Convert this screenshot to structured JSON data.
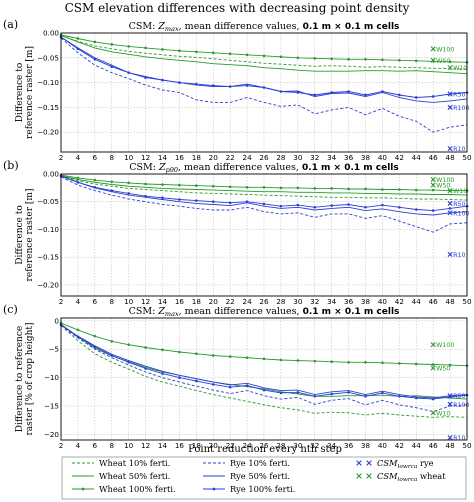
{
  "figure": {
    "title": "CSM elevation differences with decreasing point density",
    "xlabel": "Point reduction every nth step"
  },
  "colors": {
    "wheat": "#2a9a2a",
    "rye": "#2a3fd6"
  },
  "chart_data": [
    {
      "type": "line",
      "panel_label": "(a)",
      "subtitle_parts": [
        "CSM: ",
        "Z",
        "max",
        ", mean difference values, ",
        "0.1 m × 0.1 m cells"
      ],
      "ylabel": [
        "Difference to",
        "reference raster [m]"
      ],
      "xlim": [
        2,
        50
      ],
      "ylim": [
        -0.24,
        0.0
      ],
      "xticks": [
        2,
        4,
        6,
        8,
        10,
        12,
        14,
        16,
        18,
        20,
        22,
        24,
        26,
        28,
        30,
        32,
        34,
        36,
        38,
        40,
        42,
        44,
        46,
        48,
        50
      ],
      "yticks": [
        0.0,
        -0.05,
        -0.1,
        -0.15,
        -0.2
      ],
      "ytick_labels": [
        "0.00",
        "−0.05",
        "−0.10",
        "−0.15",
        "−0.20"
      ],
      "grid": true,
      "x": [
        2,
        4,
        6,
        8,
        10,
        12,
        14,
        16,
        18,
        20,
        22,
        24,
        26,
        28,
        30,
        32,
        34,
        36,
        38,
        40,
        42,
        44,
        46,
        48,
        50
      ],
      "series": [
        {
          "name": "Wheat 10% ferti.",
          "crop": "wheat",
          "style": "dashed",
          "values": [
            -0.005,
            -0.017,
            -0.026,
            -0.032,
            -0.037,
            -0.041,
            -0.044,
            -0.047,
            -0.049,
            -0.052,
            -0.055,
            -0.058,
            -0.061,
            -0.063,
            -0.065,
            -0.067,
            -0.066,
            -0.067,
            -0.069,
            -0.068,
            -0.069,
            -0.07,
            -0.071,
            -0.072,
            -0.073
          ]
        },
        {
          "name": "Wheat 50% ferti.",
          "crop": "wheat",
          "style": "solid",
          "values": [
            -0.005,
            -0.018,
            -0.03,
            -0.038,
            -0.043,
            -0.048,
            -0.052,
            -0.055,
            -0.058,
            -0.062,
            -0.064,
            -0.066,
            -0.07,
            -0.072,
            -0.075,
            -0.077,
            -0.077,
            -0.077,
            -0.076,
            -0.076,
            -0.077,
            -0.076,
            -0.078,
            -0.08,
            -0.082
          ]
        },
        {
          "name": "Wheat 100% ferti.",
          "crop": "wheat",
          "style": "marker",
          "values": [
            -0.004,
            -0.011,
            -0.018,
            -0.023,
            -0.027,
            -0.03,
            -0.033,
            -0.036,
            -0.038,
            -0.04,
            -0.042,
            -0.044,
            -0.046,
            -0.048,
            -0.05,
            -0.051,
            -0.052,
            -0.053,
            -0.053,
            -0.054,
            -0.055,
            -0.056,
            -0.057,
            -0.058,
            -0.059
          ]
        },
        {
          "name": "Rye 10% ferti.",
          "crop": "rye",
          "style": "dashed",
          "values": [
            -0.01,
            -0.04,
            -0.065,
            -0.08,
            -0.092,
            -0.105,
            -0.115,
            -0.12,
            -0.135,
            -0.14,
            -0.14,
            -0.13,
            -0.14,
            -0.148,
            -0.145,
            -0.163,
            -0.155,
            -0.15,
            -0.165,
            -0.152,
            -0.168,
            -0.178,
            -0.2,
            -0.19,
            -0.185
          ]
        },
        {
          "name": "Rye 50% ferti.",
          "crop": "rye",
          "style": "solid",
          "values": [
            -0.008,
            -0.03,
            -0.05,
            -0.065,
            -0.08,
            -0.088,
            -0.095,
            -0.1,
            -0.105,
            -0.108,
            -0.108,
            -0.103,
            -0.11,
            -0.118,
            -0.117,
            -0.128,
            -0.122,
            -0.121,
            -0.128,
            -0.12,
            -0.13,
            -0.137,
            -0.14,
            -0.137,
            -0.133
          ]
        },
        {
          "name": "Rye 100% ferti.",
          "crop": "rye",
          "style": "marker",
          "values": [
            -0.008,
            -0.032,
            -0.053,
            -0.068,
            -0.08,
            -0.09,
            -0.095,
            -0.1,
            -0.103,
            -0.106,
            -0.108,
            -0.106,
            -0.11,
            -0.118,
            -0.12,
            -0.125,
            -0.12,
            -0.118,
            -0.125,
            -0.118,
            -0.125,
            -0.13,
            -0.128,
            -0.123,
            -0.12
          ]
        }
      ],
      "references": [
        {
          "label": "W100",
          "crop": "wheat",
          "x": 46,
          "y": -0.032
        },
        {
          "label": "W50",
          "crop": "wheat",
          "x": 46,
          "y": -0.055
        },
        {
          "label": "W10",
          "crop": "wheat",
          "x": 48,
          "y": -0.07
        },
        {
          "label": "R50",
          "crop": "rye",
          "x": 48,
          "y": -0.123
        },
        {
          "label": "R100",
          "crop": "rye",
          "x": 48,
          "y": -0.15
        },
        {
          "label": "R10",
          "crop": "rye",
          "x": 48,
          "y": -0.233
        }
      ]
    },
    {
      "type": "line",
      "panel_label": "(b)",
      "subtitle_parts": [
        "CSM: ",
        "Z",
        "p90",
        ", mean difference values, ",
        "0.1 m × 0.1 m cells"
      ],
      "ylabel": [
        "Difference to",
        "reference raster [m]"
      ],
      "xlim": [
        2,
        50
      ],
      "ylim": [
        -0.22,
        0.0
      ],
      "xticks": [
        2,
        4,
        6,
        8,
        10,
        12,
        14,
        16,
        18,
        20,
        22,
        24,
        26,
        28,
        30,
        32,
        34,
        36,
        38,
        40,
        42,
        44,
        46,
        48,
        50
      ],
      "yticks": [
        0.0,
        -0.05,
        -0.1,
        -0.15,
        -0.2
      ],
      "ytick_labels": [
        "0.00",
        "−0.05",
        "−0.10",
        "−0.15",
        "−0.20"
      ],
      "grid": true,
      "x": [
        2,
        4,
        6,
        8,
        10,
        12,
        14,
        16,
        18,
        20,
        22,
        24,
        26,
        28,
        30,
        32,
        34,
        36,
        38,
        40,
        42,
        44,
        46,
        48,
        50
      ],
      "series": [
        {
          "name": "Wheat 10% ferti.",
          "crop": "wheat",
          "style": "dashed",
          "values": [
            -0.004,
            -0.012,
            -0.018,
            -0.022,
            -0.026,
            -0.028,
            -0.03,
            -0.032,
            -0.034,
            -0.035,
            -0.036,
            -0.037,
            -0.038,
            -0.039,
            -0.04,
            -0.041,
            -0.042,
            -0.042,
            -0.043,
            -0.043,
            -0.044,
            -0.045,
            -0.045,
            -0.046,
            -0.047
          ]
        },
        {
          "name": "Wheat 50% ferti.",
          "crop": "wheat",
          "style": "solid",
          "values": [
            -0.003,
            -0.01,
            -0.015,
            -0.019,
            -0.022,
            -0.024,
            -0.026,
            -0.027,
            -0.028,
            -0.029,
            -0.03,
            -0.031,
            -0.032,
            -0.032,
            -0.033,
            -0.033,
            -0.034,
            -0.034,
            -0.035,
            -0.035,
            -0.036,
            -0.036,
            -0.037,
            -0.037,
            -0.038
          ]
        },
        {
          "name": "Wheat 100% ferti.",
          "crop": "wheat",
          "style": "marker",
          "values": [
            -0.002,
            -0.007,
            -0.011,
            -0.014,
            -0.016,
            -0.018,
            -0.019,
            -0.02,
            -0.021,
            -0.022,
            -0.023,
            -0.024,
            -0.024,
            -0.025,
            -0.025,
            -0.026,
            -0.026,
            -0.027,
            -0.027,
            -0.028,
            -0.028,
            -0.029,
            -0.029,
            -0.03,
            -0.03
          ]
        },
        {
          "name": "Rye 10% ferti.",
          "crop": "rye",
          "style": "dashed",
          "values": [
            -0.005,
            -0.02,
            -0.03,
            -0.038,
            -0.045,
            -0.05,
            -0.055,
            -0.058,
            -0.062,
            -0.065,
            -0.065,
            -0.06,
            -0.068,
            -0.072,
            -0.07,
            -0.078,
            -0.072,
            -0.072,
            -0.08,
            -0.075,
            -0.085,
            -0.095,
            -0.105,
            -0.09,
            -0.088
          ]
        },
        {
          "name": "Rye 50% ferti.",
          "crop": "rye",
          "style": "solid",
          "values": [
            -0.004,
            -0.015,
            -0.025,
            -0.032,
            -0.038,
            -0.042,
            -0.046,
            -0.05,
            -0.053,
            -0.055,
            -0.057,
            -0.052,
            -0.058,
            -0.062,
            -0.06,
            -0.065,
            -0.062,
            -0.06,
            -0.066,
            -0.063,
            -0.068,
            -0.072,
            -0.074,
            -0.07,
            -0.068
          ]
        },
        {
          "name": "Rye 100% ferti.",
          "crop": "rye",
          "style": "marker",
          "values": [
            -0.004,
            -0.015,
            -0.024,
            -0.03,
            -0.035,
            -0.04,
            -0.043,
            -0.046,
            -0.048,
            -0.05,
            -0.052,
            -0.05,
            -0.054,
            -0.058,
            -0.056,
            -0.06,
            -0.057,
            -0.055,
            -0.06,
            -0.056,
            -0.06,
            -0.064,
            -0.066,
            -0.062,
            -0.058
          ]
        }
      ],
      "references": [
        {
          "label": "W100",
          "crop": "wheat",
          "x": 46,
          "y": -0.01
        },
        {
          "label": "W50",
          "crop": "wheat",
          "x": 46,
          "y": -0.02
        },
        {
          "label": "W10",
          "crop": "wheat",
          "x": 48,
          "y": -0.03
        },
        {
          "label": "R100",
          "crop": "rye",
          "x": 48,
          "y": -0.07
        },
        {
          "label": "R50",
          "crop": "rye",
          "x": 48,
          "y": -0.053
        },
        {
          "label": "R10",
          "crop": "rye",
          "x": 48,
          "y": -0.145
        }
      ]
    },
    {
      "type": "line",
      "panel_label": "(c)",
      "subtitle_parts": [
        "CSM: ",
        "Z",
        "max",
        ", mean difference values, ",
        "0.1 m × 0.1 m cells"
      ],
      "ylabel": [
        "Difference to reference",
        "raster [% of crop height]"
      ],
      "xlim": [
        2,
        50
      ],
      "ylim": [
        -21,
        0.5
      ],
      "xticks": [
        2,
        4,
        6,
        8,
        10,
        12,
        14,
        16,
        18,
        20,
        22,
        24,
        26,
        28,
        30,
        32,
        34,
        36,
        38,
        40,
        42,
        44,
        46,
        48,
        50
      ],
      "yticks": [
        0,
        -5,
        -10,
        -15,
        -20
      ],
      "ytick_labels": [
        "0",
        "−5",
        "−10",
        "−15",
        "−20"
      ],
      "grid": true,
      "x": [
        2,
        4,
        6,
        8,
        10,
        12,
        14,
        16,
        18,
        20,
        22,
        24,
        26,
        28,
        30,
        32,
        34,
        36,
        38,
        40,
        42,
        44,
        46,
        48,
        50
      ],
      "series": [
        {
          "name": "Wheat 10% ferti.",
          "crop": "wheat",
          "style": "dashed",
          "values": [
            -0.8,
            -3.5,
            -5.8,
            -7.3,
            -8.5,
            -9.8,
            -10.8,
            -11.5,
            -12.3,
            -13,
            -13.6,
            -14.2,
            -14.8,
            -15.3,
            -15.7,
            -16.3,
            -16.1,
            -16.2,
            -16.6,
            -16.3,
            -16.6,
            -16.8,
            -17,
            -16.9,
            -17
          ]
        },
        {
          "name": "Wheat 50% ferti.",
          "crop": "wheat",
          "style": "solid",
          "values": [
            -0.6,
            -2.8,
            -4.8,
            -6.2,
            -7.2,
            -8.2,
            -9,
            -9.6,
            -10.2,
            -10.8,
            -11.2,
            -11.6,
            -12,
            -12.5,
            -12.9,
            -13.3,
            -13.3,
            -13.2,
            -13.2,
            -13.1,
            -13.3,
            -13.2,
            -13.4,
            -13.6,
            -13.8
          ]
        },
        {
          "name": "Wheat 100% ferti.",
          "crop": "wheat",
          "style": "marker",
          "values": [
            -0.4,
            -1.6,
            -2.7,
            -3.6,
            -4.2,
            -4.7,
            -5.1,
            -5.5,
            -5.8,
            -6.1,
            -6.3,
            -6.5,
            -6.7,
            -6.9,
            -7,
            -7.1,
            -7.2,
            -7.3,
            -7.3,
            -7.4,
            -7.5,
            -7.6,
            -7.7,
            -7.8,
            -7.9
          ]
        },
        {
          "name": "Rye 10% ferti.",
          "crop": "rye",
          "style": "dashed",
          "values": [
            -0.8,
            -3,
            -5,
            -6.5,
            -7.8,
            -9,
            -10,
            -10.8,
            -11.5,
            -12.2,
            -12.8,
            -12.3,
            -13.2,
            -13.8,
            -13.5,
            -14.7,
            -14,
            -13.7,
            -14.8,
            -14,
            -14.8,
            -15.3,
            -16,
            -15,
            -14.8
          ]
        },
        {
          "name": "Rye 50% ferti.",
          "crop": "rye",
          "style": "solid",
          "values": [
            -0.7,
            -2.7,
            -4.4,
            -5.9,
            -7,
            -8,
            -8.9,
            -9.6,
            -10.2,
            -10.8,
            -11.3,
            -11,
            -11.8,
            -12.3,
            -12.2,
            -13,
            -12.5,
            -12.3,
            -13,
            -12.4,
            -13,
            -13.4,
            -13.6,
            -13.2,
            -13
          ]
        },
        {
          "name": "Rye 100% ferti.",
          "crop": "rye",
          "style": "marker",
          "values": [
            -0.7,
            -2.8,
            -4.6,
            -6.1,
            -7.3,
            -8.4,
            -9.3,
            -10,
            -10.6,
            -11.2,
            -11.7,
            -11.4,
            -12.2,
            -12.7,
            -12.6,
            -13.3,
            -12.9,
            -12.6,
            -13.3,
            -12.7,
            -13.3,
            -13.6,
            -13.8,
            -13.4,
            -13.1
          ]
        }
      ],
      "references": [
        {
          "label": "W100",
          "crop": "wheat",
          "x": 46,
          "y": -4.2
        },
        {
          "label": "W50",
          "crop": "wheat",
          "x": 46,
          "y": -8.3
        },
        {
          "label": "W10",
          "crop": "wheat",
          "x": 46,
          "y": -16.2
        },
        {
          "label": "R50",
          "crop": "rye",
          "x": 48,
          "y": -13.2
        },
        {
          "label": "R100",
          "crop": "rye",
          "x": 48,
          "y": -14.7
        },
        {
          "label": "R10",
          "crop": "rye",
          "x": 48,
          "y": -20.6
        }
      ]
    }
  ],
  "legend": {
    "items": [
      {
        "label": "Wheat 10% ferti.",
        "crop": "wheat",
        "style": "dashed"
      },
      {
        "label": "Wheat 50% ferti.",
        "crop": "wheat",
        "style": "solid"
      },
      {
        "label": "Wheat 100% ferti.",
        "crop": "wheat",
        "style": "marker"
      },
      {
        "label": "Rye 10% ferti.",
        "crop": "rye",
        "style": "dashed"
      },
      {
        "label": "Rye 50% ferti.",
        "crop": "rye",
        "style": "solid"
      },
      {
        "label": "Rye 100% ferti.",
        "crop": "rye",
        "style": "marker"
      }
    ],
    "reference_items": [
      {
        "symbol": "CSM",
        "subscript": "lowrca",
        "suffix": " rye",
        "crop": "rye"
      },
      {
        "symbol": "CSM",
        "subscript": "lowrca",
        "suffix": " wheat",
        "crop": "wheat"
      }
    ]
  }
}
